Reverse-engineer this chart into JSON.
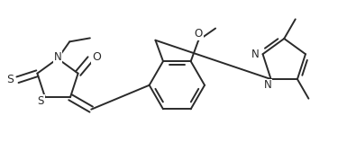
{
  "bg_color": "#ffffff",
  "line_color": "#2a2a2a",
  "line_width": 1.4,
  "font_size": 8.5,
  "figsize": [
    3.85,
    1.78
  ],
  "dpi": 100,
  "xlim": [
    0.0,
    10.0
  ],
  "ylim": [
    0.0,
    4.6
  ]
}
